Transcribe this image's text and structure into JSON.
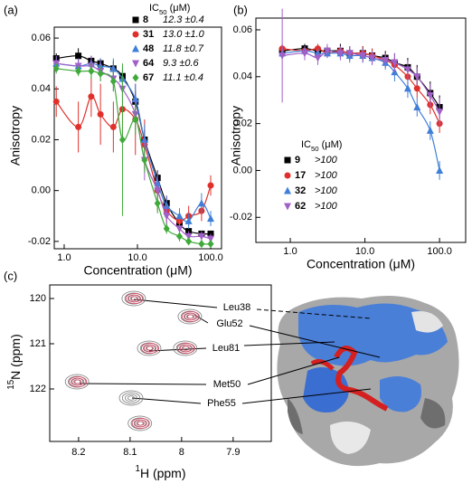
{
  "chart_data": [
    {
      "type": "scatter",
      "panel": "(a)",
      "xlabel": "Concentration (μM)",
      "ylabel": "Anisotropy",
      "xscale": "log",
      "xlim": [
        0.732,
        140.6
      ],
      "ylim": [
        -0.0229,
        0.0643
      ],
      "xticks": [
        {
          "value": 1,
          "label": "1.0"
        },
        {
          "value": 10,
          "label": "10.0"
        },
        {
          "value": 100,
          "label": "100.0"
        }
      ],
      "yticks": [
        -0.02,
        {
          "value": 0,
          "label": "0.00"
        },
        0.02,
        0.04,
        0.06
      ],
      "legend_title": [
        "IC",
        "50",
        " (μM)"
      ],
      "x": [
        0.78,
        1.56,
        2.34,
        3.13,
        4.69,
        6.25,
        9.38,
        12.5,
        18.8,
        25,
        37.5,
        50,
        75,
        100
      ],
      "series": [
        {
          "name": "8",
          "ic50": "12.3 ±0.4",
          "color": "#000000",
          "marker": "square",
          "values": [
            0.052,
            0.053,
            0.051,
            0.05,
            0.048,
            0.045,
            0.035,
            0.02,
            0.005,
            -0.005,
            -0.013,
            -0.016,
            -0.017,
            -0.017
          ],
          "errors": [
            0.002,
            0.003,
            0.002,
            0.002,
            0.003,
            0.003,
            0.004,
            0.004,
            0.003,
            0.002,
            0.002,
            0.001,
            0.001,
            0.001
          ]
        },
        {
          "name": "31",
          "ic50": "13.0 ±1.0",
          "color": "#e0302c",
          "marker": "circle",
          "values": [
            0.035,
            0.025,
            0.037,
            0.03,
            0.025,
            0.032,
            0.028,
            0.018,
            0.0,
            -0.008,
            -0.012,
            -0.01,
            -0.008,
            0.002
          ],
          "errors": [
            0.006,
            0.01,
            0.008,
            0.012,
            0.01,
            0.012,
            0.014,
            0.01,
            0.008,
            0.006,
            0.005,
            0.004,
            0.004,
            0.004
          ]
        },
        {
          "name": "48",
          "ic50": "11.8 ±0.7",
          "color": "#3f7fd8",
          "marker": "triangle",
          "values": [
            0.05,
            0.049,
            0.05,
            0.049,
            0.048,
            0.044,
            0.036,
            0.02,
            0.003,
            -0.006,
            -0.01,
            -0.012,
            -0.005,
            -0.011
          ],
          "errors": [
            0.003,
            0.003,
            0.002,
            0.003,
            0.004,
            0.005,
            0.006,
            0.006,
            0.005,
            0.004,
            0.003,
            0.003,
            0.004,
            0.003
          ]
        },
        {
          "name": "64",
          "ic50": "9.3 ±0.6",
          "color": "#a060c8",
          "marker": "down",
          "values": [
            0.05,
            0.049,
            0.049,
            0.047,
            0.044,
            0.04,
            0.03,
            0.012,
            0.0,
            -0.01,
            -0.015,
            -0.018,
            -0.018,
            -0.019
          ],
          "errors": [
            0.003,
            0.003,
            0.004,
            0.004,
            0.005,
            0.005,
            0.006,
            0.008,
            0.006,
            0.004,
            0.003,
            0.002,
            0.002,
            0.002
          ]
        },
        {
          "name": "67",
          "ic50": "11.1 ±0.4",
          "color": "#3faa3a",
          "marker": "diamond",
          "values": [
            0.048,
            0.047,
            0.047,
            0.046,
            0.043,
            0.02,
            0.028,
            0.012,
            -0.005,
            -0.015,
            -0.018,
            -0.02,
            -0.021,
            -0.021
          ],
          "errors": [
            0.002,
            0.002,
            0.003,
            0.003,
            0.004,
            0.03,
            0.006,
            0.005,
            0.004,
            0.002,
            0.002,
            0.001,
            0.001,
            0.001
          ]
        }
      ]
    },
    {
      "type": "scatter",
      "panel": "(b)",
      "xlabel": "Concentration (μM)",
      "ylabel": "Anisotropy",
      "xscale": "log",
      "xlim": [
        0.346,
        224
      ],
      "ylim": [
        -0.0307,
        0.065
      ],
      "xticks": [
        {
          "value": 1,
          "label": "1.0"
        },
        {
          "value": 10,
          "label": "10.0"
        },
        {
          "value": 100,
          "label": "100.0"
        }
      ],
      "yticks": [
        -0.02,
        {
          "value": 0,
          "label": "0.00"
        },
        0.02,
        0.04,
        0.06
      ],
      "legend_title": [
        "IC",
        "50",
        " (μM)"
      ],
      "x": [
        0.78,
        1.56,
        2.34,
        3.13,
        4.69,
        6.25,
        9.38,
        12.5,
        18.8,
        25,
        37.5,
        50,
        75,
        100
      ],
      "series": [
        {
          "name": "9",
          "ic50": ">100",
          "color": "#000000",
          "marker": "square",
          "values": [
            0.051,
            0.052,
            0.051,
            0.051,
            0.051,
            0.05,
            0.05,
            0.049,
            0.048,
            0.046,
            0.044,
            0.04,
            0.033,
            0.027
          ],
          "errors": [
            0.002,
            0.002,
            0.002,
            0.002,
            0.003,
            0.003,
            0.003,
            0.003,
            0.003,
            0.004,
            0.004,
            0.005,
            0.005,
            0.005
          ]
        },
        {
          "name": "17",
          "ic50": ">100",
          "color": "#e0302c",
          "marker": "circle",
          "values": [
            0.052,
            0.051,
            0.052,
            0.05,
            0.051,
            0.05,
            0.05,
            0.049,
            0.047,
            0.045,
            0.04,
            0.035,
            0.028,
            0.02
          ],
          "errors": [
            0.002,
            0.002,
            0.002,
            0.002,
            0.002,
            0.002,
            0.003,
            0.003,
            0.003,
            0.003,
            0.004,
            0.004,
            0.004,
            0.004
          ]
        },
        {
          "name": "32",
          "ic50": ">100",
          "color": "#3f7fd8",
          "marker": "triangle",
          "values": [
            0.05,
            0.051,
            0.05,
            0.05,
            0.05,
            0.049,
            0.049,
            0.048,
            0.046,
            0.042,
            0.035,
            0.027,
            0.017,
            0.0
          ],
          "errors": [
            0.002,
            0.002,
            0.002,
            0.002,
            0.002,
            0.003,
            0.003,
            0.003,
            0.003,
            0.004,
            0.004,
            0.004,
            0.004,
            0.004
          ]
        },
        {
          "name": "62",
          "ic50": ">100",
          "color": "#a060c8",
          "marker": "down",
          "values": [
            0.049,
            0.05,
            0.048,
            0.051,
            0.05,
            0.05,
            0.049,
            0.048,
            0.047,
            0.046,
            0.043,
            0.04,
            0.032,
            0.025
          ],
          "errors": [
            0.02,
            0.003,
            0.003,
            0.003,
            0.003,
            0.003,
            0.003,
            0.003,
            0.003,
            0.004,
            0.004,
            0.004,
            0.005,
            0.006
          ]
        }
      ]
    },
    {
      "type": "spectrum",
      "panel": "(c)",
      "xlabel": [
        "1",
        "H (ppm)"
      ],
      "ylabel": [
        "15",
        "N (ppm)"
      ],
      "xlim": [
        8.256,
        7.826
      ],
      "ylim": [
        119.7,
        123.16
      ],
      "xticks": [
        8.2,
        8.1,
        8.0,
        7.9
      ],
      "yticks": [
        120,
        121,
        122
      ],
      "peaks": {
        "x": [
          8.093,
          7.984,
          8.063,
          7.993,
          8.203,
          8.098,
          8.081
        ],
        "y": [
          120.0,
          120.4,
          121.1,
          121.1,
          121.84,
          122.2,
          122.76
        ],
        "overlay": [
          true,
          true,
          true,
          true,
          true,
          false,
          true
        ]
      },
      "colors": [
        "#7a7a7a",
        "#d0506a"
      ],
      "annotations": [
        "Leu38",
        "Glu52",
        "Leu81",
        "Met50",
        "Phe55"
      ]
    }
  ]
}
